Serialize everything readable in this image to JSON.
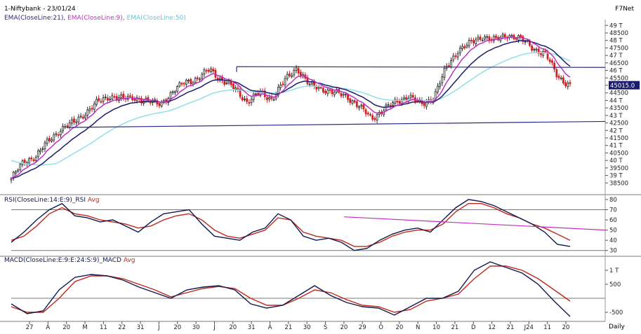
{
  "header": {
    "symbol_line": "1-Niftybank - 23/01/24",
    "brand": "F7Net",
    "ema_labels": [
      {
        "text": "EMA(CloseLine:21),",
        "color": "#2a2a7a"
      },
      {
        "text": "EMA(CloseLine:9),",
        "color": "#c030c0"
      },
      {
        "text": "EMA(CloseLine:50)",
        "color": "#58c8d8"
      }
    ]
  },
  "price_panel": {
    "y_ticks": [
      "49 T",
      "48500",
      "48 T",
      "47500",
      "47 T",
      "46500",
      "46 T",
      "45500",
      "45015.0",
      "44500",
      "44 T",
      "43500",
      "43 T",
      "42500",
      "42 T",
      "41500",
      "41 T",
      "40500",
      "40 T",
      "39500",
      "39 T",
      "38500"
    ],
    "last_price": "45015.0",
    "colors": {
      "ema21": "#1c1c6e",
      "ema9": "#c030c0",
      "ema50": "#8fe0e8",
      "trendline": "#2a2a8a",
      "up": "#2a2a2a",
      "down": "#d02020"
    }
  },
  "rsi_panel": {
    "label": "RSI(CloseLine:14:E:9)_RSI",
    "avg_label": "Avg",
    "y_ticks": [
      "80",
      "70",
      "60",
      "50",
      "40",
      "30"
    ],
    "colors": {
      "rsi": "#101850",
      "avg": "#c02818",
      "trend": "#c030c0"
    }
  },
  "macd_panel": {
    "label": "MACD(CloseLine:E:9:E:24:S:9)_MACD",
    "avg_label": "Avg",
    "y_ticks": [
      "1 T",
      "500",
      "-500"
    ],
    "colors": {
      "macd": "#101850",
      "signal": "#c02818"
    }
  },
  "x_axis": {
    "ticks": [
      "27",
      "A",
      "20",
      "M",
      "11",
      "22",
      "31",
      "J",
      "20",
      "30",
      "J",
      "20",
      "31",
      "A",
      "21",
      "30",
      "S",
      "20",
      "29",
      "O",
      "20",
      "N",
      "10",
      "21",
      "D",
      "12",
      "21",
      "J24",
      "11",
      "20"
    ],
    "period": "Daily"
  },
  "chart_data": [
    {
      "type": "candlestick",
      "title": "1-Niftybank - 23/01/24",
      "series": [
        {
          "name": "EMA(CloseLine:21)"
        },
        {
          "name": "EMA(CloseLine:9)"
        },
        {
          "name": "EMA(CloseLine:50)"
        }
      ],
      "ylim": [
        38000,
        49200
      ],
      "last_value": 45015.0,
      "close_path": [
        38800,
        39900,
        40300,
        41300,
        42100,
        42500,
        43200,
        43900,
        44300,
        44100,
        44200,
        43900,
        43800,
        44500,
        45300,
        45400,
        46100,
        45300,
        44800,
        43900,
        44500,
        44100,
        45300,
        46200,
        45000,
        44800,
        44500,
        44300,
        43600,
        42800,
        43400,
        43900,
        44300,
        43700,
        44200,
        46100,
        47400,
        47800,
        48300,
        48000,
        48400,
        48100,
        47500,
        47100,
        45600,
        45000
      ]
    },
    {
      "type": "line",
      "title": "RSI(CloseLine:14:E:9)_RSI",
      "series": [
        {
          "name": "RSI"
        },
        {
          "name": "Avg"
        }
      ],
      "ylim": [
        25,
        82
      ],
      "y_ticks": [
        80,
        70,
        60,
        50,
        40,
        30
      ],
      "rsi": [
        38,
        48,
        60,
        70,
        76,
        64,
        62,
        58,
        60,
        54,
        48,
        58,
        66,
        68,
        70,
        56,
        44,
        42,
        40,
        48,
        52,
        66,
        60,
        44,
        40,
        42,
        38,
        30,
        32,
        40,
        46,
        50,
        52,
        48,
        60,
        72,
        80,
        78,
        74,
        68,
        62,
        56,
        48,
        36,
        34
      ],
      "avg": [
        40,
        44,
        54,
        66,
        72,
        66,
        64,
        60,
        58,
        56,
        52,
        54,
        60,
        64,
        66,
        60,
        50,
        44,
        42,
        46,
        50,
        62,
        60,
        48,
        44,
        42,
        40,
        34,
        34,
        38,
        44,
        48,
        50,
        50,
        56,
        68,
        76,
        76,
        72,
        66,
        62,
        56,
        52,
        46,
        40
      ]
    },
    {
      "type": "line",
      "title": "MACD(CloseLine:E:9:E:24:S:9)_MACD",
      "series": [
        {
          "name": "MACD"
        },
        {
          "name": "Avg"
        }
      ],
      "ylim": [
        -750,
        1350
      ],
      "y_ticks": [
        1000,
        500,
        -500
      ],
      "macd": [
        -200,
        -550,
        -450,
        300,
        750,
        850,
        800,
        650,
        400,
        200,
        0,
        300,
        400,
        450,
        300,
        -200,
        -350,
        -250,
        100,
        450,
        100,
        -150,
        -300,
        -350,
        -600,
        -300,
        0,
        0,
        250,
        1000,
        1300,
        1100,
        900,
        500,
        -100,
        -650
      ],
      "avg": [
        -300,
        -500,
        -500,
        0,
        600,
        800,
        800,
        700,
        500,
        300,
        50,
        200,
        350,
        420,
        350,
        0,
        -250,
        -250,
        0,
        300,
        200,
        -50,
        -250,
        -300,
        -500,
        -400,
        -100,
        0,
        150,
        700,
        1150,
        1150,
        1000,
        700,
        300,
        -100
      ]
    }
  ]
}
